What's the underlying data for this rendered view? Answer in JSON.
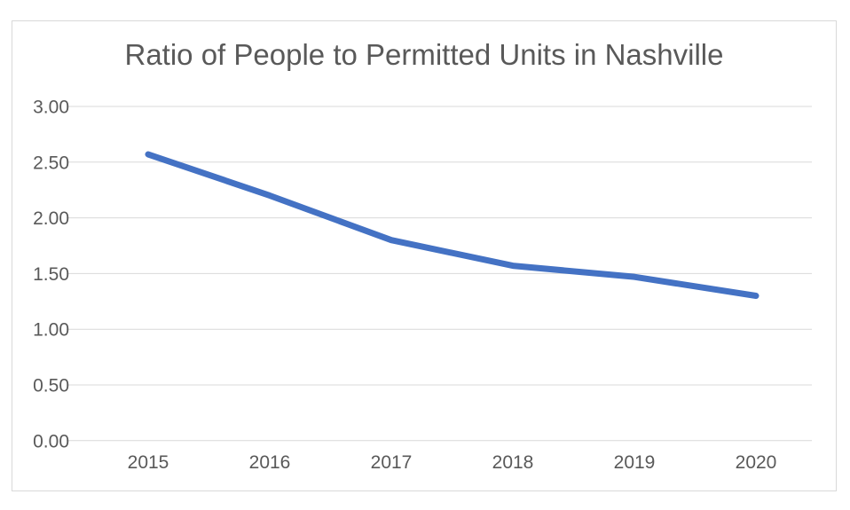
{
  "chart_data": {
    "type": "line",
    "title": "Ratio of People to Permitted Units in Nashville",
    "categories": [
      "2015",
      "2016",
      "2017",
      "2018",
      "2019",
      "2020"
    ],
    "series": [
      {
        "name": "Ratio of People to Permitted Units",
        "values": [
          2.57,
          2.2,
          1.8,
          1.57,
          1.47,
          1.3
        ]
      }
    ],
    "xlabel": "",
    "ylabel": "",
    "ylim": [
      0.0,
      3.0
    ],
    "ytick_step": 0.5,
    "ytick_labels_top_down": [
      "3.00",
      "2.50",
      "2.00",
      "1.50",
      "1.00",
      "0.50",
      "0.00"
    ],
    "grid": true,
    "legend_position": "none",
    "colors": {
      "line": "#4472C4",
      "gridline": "#d9d9d9",
      "axis_text": "#595959",
      "title_text": "#595959",
      "frame_border": "#d9d9d9",
      "background": "#ffffff"
    }
  }
}
